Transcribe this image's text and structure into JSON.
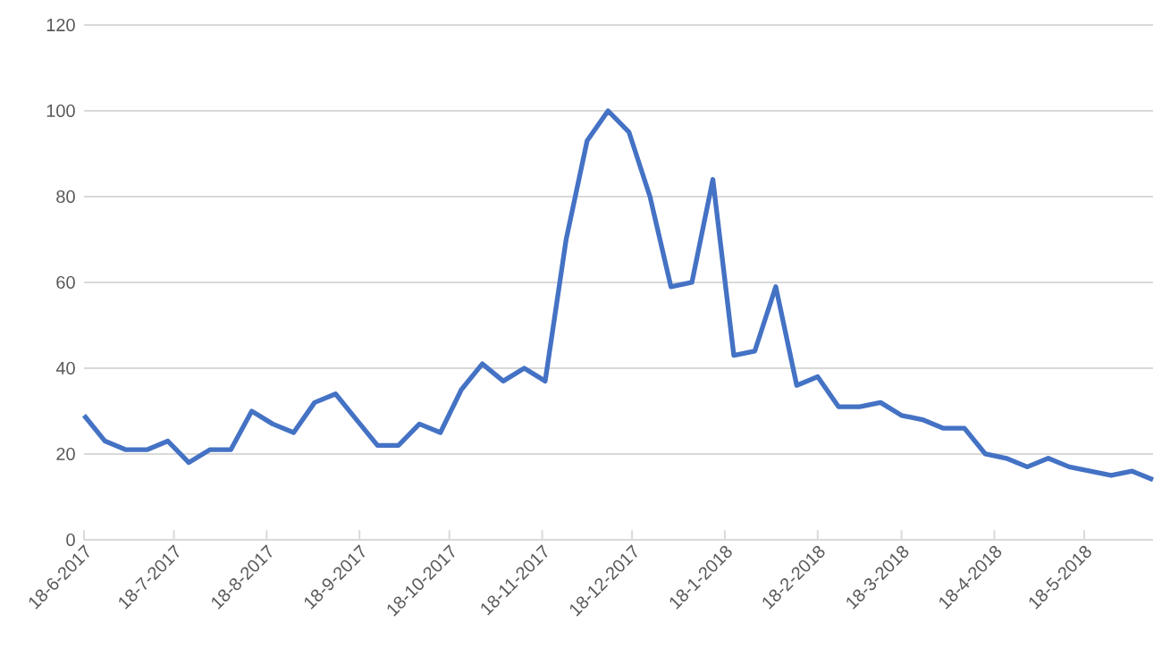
{
  "chart_data": {
    "type": "line",
    "x": [
      "2017-06-18",
      "2017-06-25",
      "2017-07-02",
      "2017-07-09",
      "2017-07-16",
      "2017-07-23",
      "2017-07-30",
      "2017-08-06",
      "2017-08-13",
      "2017-08-20",
      "2017-08-27",
      "2017-09-03",
      "2017-09-10",
      "2017-09-17",
      "2017-09-24",
      "2017-10-01",
      "2017-10-08",
      "2017-10-15",
      "2017-10-22",
      "2017-10-29",
      "2017-11-05",
      "2017-11-12",
      "2017-11-19",
      "2017-11-26",
      "2017-12-03",
      "2017-12-10",
      "2017-12-17",
      "2017-12-24",
      "2017-12-31",
      "2018-01-07",
      "2018-01-14",
      "2018-01-21",
      "2018-01-28",
      "2018-02-04",
      "2018-02-11",
      "2018-02-18",
      "2018-02-25",
      "2018-03-04",
      "2018-03-11",
      "2018-03-18",
      "2018-03-25",
      "2018-04-01",
      "2018-04-08",
      "2018-04-15",
      "2018-04-22",
      "2018-04-29",
      "2018-05-06",
      "2018-05-13",
      "2018-05-20",
      "2018-05-27",
      "2018-06-03",
      "2018-06-10"
    ],
    "series": [
      {
        "color": "#4472c4",
        "values": [
          29,
          23,
          21,
          21,
          23,
          18,
          21,
          21,
          30,
          27,
          25,
          32,
          34,
          28,
          22,
          22,
          27,
          25,
          35,
          41,
          37,
          40,
          37,
          70,
          93,
          100,
          95,
          80,
          59,
          60,
          84,
          43,
          44,
          59,
          36,
          38,
          31,
          31,
          32,
          29,
          28,
          26,
          26,
          20,
          19,
          17,
          19,
          17,
          16,
          15,
          16,
          14
        ]
      }
    ],
    "xlim": [
      "2017-06-18",
      "2018-06-10"
    ],
    "xticks": [
      {
        "value": "2017-06-18",
        "label": "18-6-2017"
      },
      {
        "value": "2017-07-18",
        "label": "18-7-2017"
      },
      {
        "value": "2017-08-18",
        "label": "18-8-2017"
      },
      {
        "value": "2017-09-18",
        "label": "18-9-2017"
      },
      {
        "value": "2017-10-18",
        "label": "18-10-2017"
      },
      {
        "value": "2017-11-18",
        "label": "18-11-2017"
      },
      {
        "value": "2017-12-18",
        "label": "18-12-2017"
      },
      {
        "value": "2018-01-18",
        "label": "18-1-2018"
      },
      {
        "value": "2018-02-18",
        "label": "18-2-2018"
      },
      {
        "value": "2018-03-18",
        "label": "18-3-2018"
      },
      {
        "value": "2018-04-18",
        "label": "18-4-2018"
      },
      {
        "value": "2018-05-18",
        "label": "18-5-2018"
      }
    ],
    "ylim": [
      0,
      120
    ],
    "yticks": [
      0,
      20,
      40,
      60,
      80,
      100,
      120
    ],
    "grid": "y",
    "marker": "none",
    "line_style": "solid"
  }
}
